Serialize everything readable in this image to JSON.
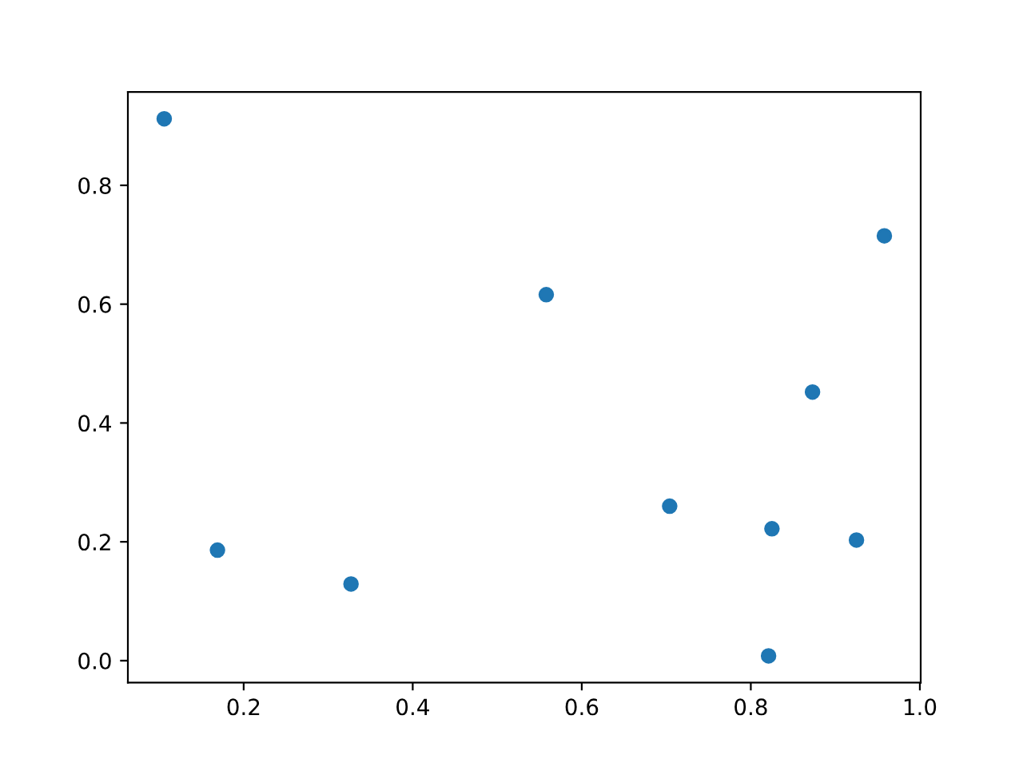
{
  "chart_data": {
    "type": "scatter",
    "x": [
      0.106,
      0.169,
      0.327,
      0.558,
      0.704,
      0.825,
      0.821,
      0.873,
      0.925,
      0.958
    ],
    "values": [
      0.912,
      0.186,
      0.129,
      0.616,
      0.26,
      0.222,
      0.008,
      0.452,
      0.203,
      0.715
    ],
    "color": "#1f77b4",
    "marker": "circle",
    "xlim": [
      0.063,
      1.001
    ],
    "ylim": [
      -0.037,
      0.957
    ],
    "xticks": [
      0.2,
      0.4,
      0.6,
      0.8,
      {
        "value": 1,
        "label": "1.0"
      }
    ],
    "yticks": [
      {
        "value": 0,
        "label": "0.0"
      },
      0.2,
      0.4,
      0.6,
      0.8
    ],
    "grid": false
  }
}
